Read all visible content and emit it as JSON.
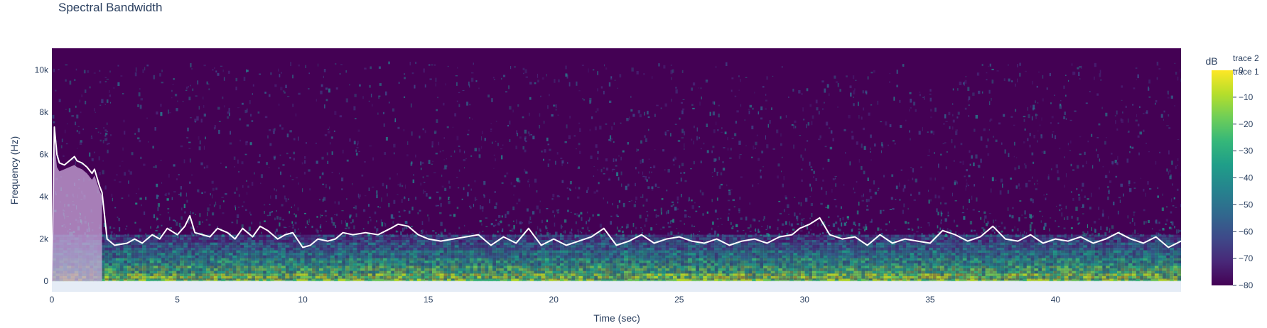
{
  "chart_data": {
    "type": "heatmap",
    "title": "Spectral Bandwidth",
    "xlabel": "Time (sec)",
    "ylabel": "Frequency (Hz)",
    "xlim": [
      0,
      45
    ],
    "ylim": [
      -500,
      11025
    ],
    "x_ticks": [
      0,
      5,
      10,
      15,
      20,
      25,
      30,
      35,
      40
    ],
    "x_tick_labels": [
      "0",
      "5",
      "10",
      "15",
      "20",
      "25",
      "30",
      "35",
      "40"
    ],
    "y_ticks": [
      0,
      2000,
      4000,
      6000,
      8000,
      10000
    ],
    "y_tick_labels": [
      "0",
      "2k",
      "4k",
      "6k",
      "8k",
      "10k"
    ],
    "colorbar": {
      "title": "dB",
      "range": [
        -80,
        0
      ],
      "ticks": [
        0,
        -10,
        -20,
        -30,
        -40,
        -50,
        -60,
        -70,
        -80
      ],
      "tick_labels": [
        "0",
        "−10",
        "−20",
        "−30",
        "−40",
        "−50",
        "−60",
        "−70",
        "−80"
      ],
      "colorscale": "viridis"
    },
    "legend": {
      "placement": "top-right",
      "entries": [
        "trace 2",
        "trace 1"
      ]
    },
    "series": [
      {
        "name": "trace 1",
        "type": "line",
        "color": "#ffffff",
        "x": [
          0,
          0.1,
          0.2,
          0.3,
          0.5,
          0.7,
          0.9,
          1.0,
          1.2,
          1.4,
          1.6,
          1.7,
          1.9,
          2.0,
          2.2,
          2.5,
          3.0,
          3.3,
          3.6,
          4.0,
          4.3,
          4.6,
          5.0,
          5.3,
          5.5,
          5.7,
          6.0,
          6.3,
          6.6,
          7.0,
          7.3,
          7.6,
          8.0,
          8.3,
          8.6,
          9.0,
          9.3,
          9.6,
          10.0,
          10.3,
          10.6,
          11.0,
          11.3,
          11.6,
          12.0,
          12.5,
          13.0,
          13.5,
          13.8,
          14.2,
          14.6,
          15.0,
          15.5,
          16.0,
          16.5,
          17.0,
          17.5,
          18.0,
          18.5,
          19.0,
          19.5,
          20.0,
          20.5,
          21.0,
          21.5,
          22.0,
          22.5,
          23.0,
          23.5,
          24.0,
          24.5,
          25.0,
          25.5,
          26.0,
          26.5,
          27.0,
          27.5,
          28.0,
          28.5,
          29.0,
          29.5,
          29.8,
          30.2,
          30.6,
          31.0,
          31.5,
          32.0,
          32.5,
          33.0,
          33.5,
          34.0,
          34.5,
          35.0,
          35.5,
          36.0,
          36.5,
          37.0,
          37.5,
          38.0,
          38.5,
          39.0,
          39.5,
          40.0,
          40.5,
          41.0,
          41.5,
          42.0,
          42.5,
          43.0,
          43.5,
          44.0,
          44.5,
          45.0
        ],
        "y": [
          0,
          7300,
          6000,
          5600,
          5500,
          5700,
          5900,
          5700,
          5600,
          5400,
          5100,
          5300,
          4500,
          4200,
          2000,
          1700,
          1800,
          2000,
          1800,
          2200,
          2000,
          2500,
          2200,
          2600,
          3100,
          2300,
          2200,
          2100,
          2500,
          2300,
          2000,
          2500,
          2100,
          2600,
          2400,
          2000,
          2200,
          2300,
          1600,
          1700,
          2000,
          1900,
          2000,
          2300,
          2200,
          2300,
          2200,
          2500,
          2700,
          2600,
          2200,
          2000,
          1900,
          2000,
          2100,
          2200,
          1700,
          2100,
          1800,
          2500,
          1700,
          2000,
          1700,
          1900,
          2100,
          2500,
          1700,
          1900,
          2200,
          1800,
          2000,
          2100,
          1900,
          1800,
          2000,
          1700,
          1900,
          2000,
          1800,
          2100,
          2200,
          2500,
          2700,
          3000,
          2200,
          2000,
          2100,
          1700,
          2200,
          1800,
          2000,
          1900,
          1800,
          2400,
          2200,
          1900,
          2100,
          2600,
          2000,
          1900,
          2200,
          1800,
          2000,
          1900,
          2100,
          1800,
          2000,
          2300,
          2000,
          1800,
          2100,
          1600,
          1900
        ]
      },
      {
        "name": "trace 2",
        "type": "area",
        "color": "#c8a8d8",
        "x": [
          0,
          0.1,
          0.2,
          0.3,
          0.5,
          0.7,
          0.9,
          1.0,
          1.2,
          1.4,
          1.6,
          1.7,
          1.9,
          2.0,
          2.0
        ],
        "y": [
          0,
          6600,
          5400,
          5200,
          5300,
          5400,
          5500,
          5400,
          5300,
          5100,
          4800,
          5000,
          4300,
          4000,
          0
        ]
      }
    ]
  }
}
